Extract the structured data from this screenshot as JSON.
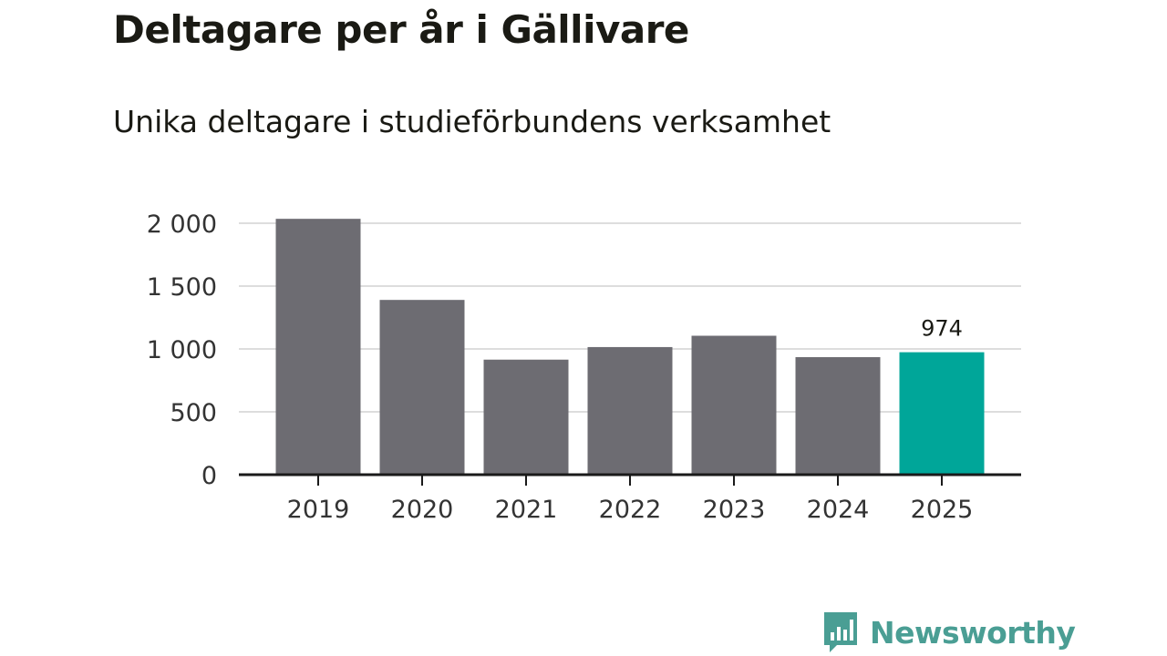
{
  "title": "Deltagare per år i Gällivare",
  "subtitle": "Unika deltagare i studieförbundens verksamhet",
  "brand": {
    "name": "Newsworthy",
    "color": "#4a9e94",
    "icon": "bar-chart-speech-bubble-icon"
  },
  "colors": {
    "bar": "#6d6c72",
    "highlight": "#00a699",
    "grid": "#dddddd",
    "axis": "#1a1a1a"
  },
  "chart_data": {
    "type": "bar",
    "categories": [
      "2019",
      "2020",
      "2021",
      "2022",
      "2023",
      "2024",
      "2025"
    ],
    "values": [
      2035,
      1390,
      915,
      1015,
      1105,
      935,
      974
    ],
    "highlight_index": 6,
    "data_labels": [
      {
        "index": 6,
        "text": "974"
      }
    ],
    "yticks": [
      0,
      500,
      1000,
      1500,
      2000
    ],
    "ytick_labels": [
      "0",
      "500",
      "1 000",
      "1 500",
      "2 000"
    ],
    "ylim": [
      0,
      2000
    ],
    "xlabel": "",
    "ylabel": "",
    "grid": true,
    "legend": "none"
  }
}
